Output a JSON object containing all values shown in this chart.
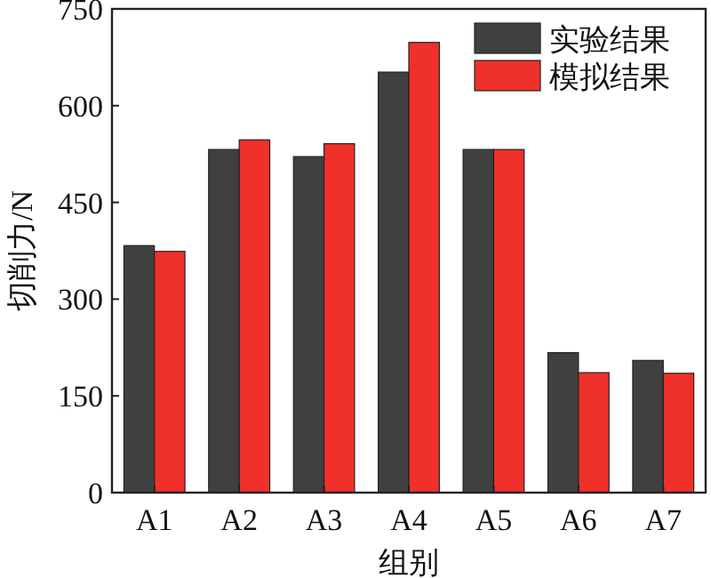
{
  "chart_data": {
    "type": "bar",
    "xlabel": "组别",
    "ylabel": "切削力/N",
    "categories": [
      "A1",
      "A2",
      "A3",
      "A4",
      "A5",
      "A6",
      "A7"
    ],
    "series": [
      {
        "name": "实验结果",
        "color": "#404040",
        "values": [
          383,
          532,
          521,
          652,
          532,
          217,
          205
        ]
      },
      {
        "name": "模拟结果",
        "color": "#f0302a",
        "values": [
          374,
          547,
          541,
          698,
          532,
          186,
          185
        ]
      }
    ],
    "ylim": [
      0,
      750
    ],
    "yticks": [
      0,
      150,
      300,
      450,
      600,
      750
    ],
    "legend": "top right",
    "grid": false
  }
}
